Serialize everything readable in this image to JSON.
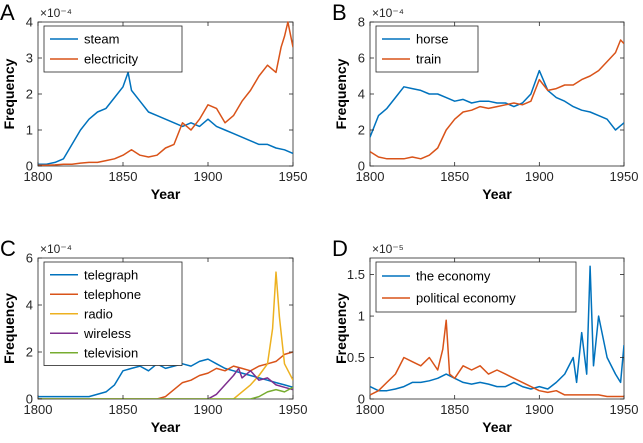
{
  "chart_data": [
    {
      "panel": "A",
      "type": "line",
      "xlabel": "Year",
      "ylabel": "Frequency",
      "multiplier": "×10⁻⁴",
      "xlim": [
        1800,
        1950
      ],
      "ylim": [
        0,
        4
      ],
      "xticks": [
        1800,
        1850,
        1900,
        1950
      ],
      "yticks": [
        0,
        1,
        2,
        3,
        4
      ],
      "legend_position": "top-left",
      "series": [
        {
          "name": "steam",
          "color": "#0072bd",
          "x": [
            1800,
            1805,
            1810,
            1815,
            1820,
            1825,
            1830,
            1835,
            1840,
            1845,
            1850,
            1853,
            1855,
            1860,
            1865,
            1870,
            1875,
            1880,
            1885,
            1890,
            1895,
            1900,
            1905,
            1910,
            1915,
            1920,
            1925,
            1930,
            1935,
            1940,
            1945,
            1950
          ],
          "y": [
            0.05,
            0.05,
            0.1,
            0.2,
            0.6,
            1.0,
            1.3,
            1.5,
            1.6,
            1.9,
            2.2,
            2.6,
            2.1,
            1.8,
            1.5,
            1.4,
            1.3,
            1.2,
            1.1,
            1.2,
            1.1,
            1.3,
            1.1,
            1.0,
            0.9,
            0.8,
            0.7,
            0.6,
            0.6,
            0.5,
            0.45,
            0.35
          ]
        },
        {
          "name": "electricity",
          "color": "#d95319",
          "x": [
            1800,
            1805,
            1810,
            1815,
            1820,
            1825,
            1830,
            1835,
            1840,
            1845,
            1850,
            1855,
            1860,
            1865,
            1870,
            1875,
            1880,
            1885,
            1890,
            1895,
            1900,
            1905,
            1910,
            1915,
            1920,
            1925,
            1930,
            1935,
            1940,
            1943,
            1945,
            1947,
            1950
          ],
          "y": [
            0.02,
            0.02,
            0.03,
            0.05,
            0.05,
            0.08,
            0.1,
            0.1,
            0.15,
            0.2,
            0.3,
            0.45,
            0.3,
            0.25,
            0.3,
            0.5,
            0.6,
            1.2,
            1.0,
            1.3,
            1.7,
            1.6,
            1.2,
            1.4,
            1.8,
            2.1,
            2.5,
            2.8,
            2.6,
            3.3,
            3.6,
            4.0,
            3.3
          ]
        }
      ]
    },
    {
      "panel": "B",
      "type": "line",
      "xlabel": "Year",
      "ylabel": "Frequency",
      "multiplier": "×10⁻⁴",
      "xlim": [
        1800,
        1950
      ],
      "ylim": [
        0,
        8
      ],
      "xticks": [
        1800,
        1850,
        1900,
        1950
      ],
      "yticks": [
        0,
        2,
        4,
        6,
        8
      ],
      "legend_position": "top-left",
      "series": [
        {
          "name": "horse",
          "color": "#0072bd",
          "x": [
            1800,
            1805,
            1810,
            1815,
            1820,
            1825,
            1830,
            1835,
            1840,
            1845,
            1850,
            1855,
            1860,
            1865,
            1870,
            1875,
            1880,
            1885,
            1890,
            1895,
            1900,
            1905,
            1910,
            1915,
            1920,
            1925,
            1930,
            1935,
            1940,
            1945,
            1950
          ],
          "y": [
            1.6,
            2.8,
            3.2,
            3.8,
            4.4,
            4.3,
            4.2,
            4.0,
            4.0,
            3.8,
            3.6,
            3.7,
            3.5,
            3.6,
            3.6,
            3.5,
            3.5,
            3.3,
            3.5,
            4.0,
            5.3,
            4.2,
            3.8,
            3.6,
            3.3,
            3.1,
            3.0,
            2.8,
            2.6,
            2.0,
            2.4
          ]
        },
        {
          "name": "train",
          "color": "#d95319",
          "x": [
            1800,
            1805,
            1810,
            1815,
            1820,
            1825,
            1830,
            1835,
            1840,
            1845,
            1850,
            1855,
            1860,
            1865,
            1870,
            1875,
            1880,
            1885,
            1890,
            1895,
            1900,
            1905,
            1910,
            1915,
            1920,
            1925,
            1930,
            1935,
            1940,
            1945,
            1948,
            1950
          ],
          "y": [
            0.8,
            0.5,
            0.4,
            0.4,
            0.4,
            0.5,
            0.4,
            0.6,
            1.0,
            2.0,
            2.6,
            3.0,
            3.1,
            3.3,
            3.2,
            3.3,
            3.4,
            3.5,
            3.4,
            3.6,
            4.8,
            4.2,
            4.3,
            4.5,
            4.5,
            4.8,
            5.0,
            5.3,
            5.8,
            6.3,
            7.0,
            6.8
          ]
        }
      ]
    },
    {
      "panel": "C",
      "type": "line",
      "xlabel": "Year",
      "ylabel": "Frequency",
      "multiplier": "×10⁻⁴",
      "xlim": [
        1800,
        1950
      ],
      "ylim": [
        0,
        6
      ],
      "xticks": [
        1800,
        1850,
        1900,
        1950
      ],
      "yticks": [
        0,
        2,
        4,
        6
      ],
      "legend_position": "top-left",
      "series": [
        {
          "name": "telegraph",
          "color": "#0072bd",
          "x": [
            1800,
            1810,
            1820,
            1830,
            1840,
            1845,
            1850,
            1855,
            1860,
            1865,
            1870,
            1875,
            1880,
            1885,
            1890,
            1895,
            1900,
            1905,
            1910,
            1915,
            1920,
            1925,
            1930,
            1935,
            1940,
            1945,
            1950
          ],
          "y": [
            0.1,
            0.1,
            0.1,
            0.1,
            0.3,
            0.6,
            1.2,
            1.3,
            1.4,
            1.2,
            1.5,
            1.3,
            1.4,
            1.5,
            1.4,
            1.6,
            1.7,
            1.5,
            1.3,
            1.2,
            1.1,
            1.0,
            0.9,
            0.8,
            0.7,
            0.6,
            0.5
          ]
        },
        {
          "name": "telephone",
          "color": "#d95319",
          "x": [
            1800,
            1870,
            1875,
            1880,
            1885,
            1890,
            1895,
            1900,
            1905,
            1910,
            1915,
            1920,
            1925,
            1930,
            1935,
            1940,
            1945,
            1950
          ],
          "y": [
            0,
            0,
            0.1,
            0.4,
            0.7,
            0.8,
            1.0,
            1.1,
            1.3,
            1.2,
            1.4,
            1.3,
            1.2,
            1.4,
            1.5,
            1.6,
            1.9,
            2.0
          ]
        },
        {
          "name": "radio",
          "color": "#edb120",
          "x": [
            1800,
            1915,
            1920,
            1925,
            1930,
            1935,
            1938,
            1940,
            1942,
            1945,
            1950
          ],
          "y": [
            0,
            0,
            0.3,
            0.6,
            1.0,
            1.5,
            3.0,
            5.4,
            3.5,
            1.5,
            0.8
          ]
        },
        {
          "name": "wireless",
          "color": "#7e2f8e",
          "x": [
            1800,
            1900,
            1905,
            1910,
            1915,
            1918,
            1920,
            1925,
            1930,
            1935,
            1940,
            1945,
            1950
          ],
          "y": [
            0,
            0,
            0.2,
            0.6,
            1.0,
            1.3,
            0.9,
            1.2,
            0.8,
            0.9,
            0.6,
            0.5,
            0.4
          ]
        },
        {
          "name": "television",
          "color": "#77ac30",
          "x": [
            1800,
            1925,
            1930,
            1935,
            1940,
            1945,
            1950
          ],
          "y": [
            0,
            0,
            0.1,
            0.3,
            0.4,
            0.3,
            0.5
          ]
        }
      ]
    },
    {
      "panel": "D",
      "type": "line",
      "xlabel": "Year",
      "ylabel": "Frequency",
      "multiplier": "×10⁻⁵",
      "xlim": [
        1800,
        1950
      ],
      "ylim": [
        0,
        1.7
      ],
      "xticks": [
        1800,
        1850,
        1900,
        1950
      ],
      "yticks": [
        0,
        0.5,
        1,
        1.5
      ],
      "ytick_labels": [
        "0",
        "0.5",
        "1",
        "1.5"
      ],
      "legend_position": "top-left",
      "series": [
        {
          "name": "the economy",
          "color": "#0072bd",
          "x": [
            1800,
            1805,
            1810,
            1815,
            1820,
            1825,
            1830,
            1835,
            1840,
            1845,
            1850,
            1855,
            1860,
            1865,
            1870,
            1875,
            1880,
            1885,
            1890,
            1895,
            1900,
            1905,
            1910,
            1915,
            1920,
            1922,
            1925,
            1928,
            1930,
            1932,
            1935,
            1940,
            1945,
            1948,
            1950
          ],
          "y": [
            0.15,
            0.1,
            0.1,
            0.12,
            0.15,
            0.2,
            0.2,
            0.22,
            0.25,
            0.3,
            0.25,
            0.2,
            0.18,
            0.2,
            0.18,
            0.15,
            0.15,
            0.2,
            0.15,
            0.12,
            0.15,
            0.12,
            0.2,
            0.3,
            0.5,
            0.2,
            0.8,
            0.3,
            1.6,
            0.4,
            1.0,
            0.5,
            0.3,
            0.2,
            0.65
          ]
        },
        {
          "name": "political economy",
          "color": "#d95319",
          "x": [
            1800,
            1805,
            1810,
            1815,
            1820,
            1825,
            1830,
            1835,
            1840,
            1843,
            1845,
            1847,
            1850,
            1855,
            1860,
            1865,
            1870,
            1875,
            1880,
            1885,
            1890,
            1895,
            1900,
            1905,
            1910,
            1915,
            1920,
            1925,
            1930,
            1935,
            1940,
            1945,
            1950
          ],
          "y": [
            0.05,
            0.1,
            0.2,
            0.3,
            0.5,
            0.45,
            0.4,
            0.5,
            0.35,
            0.6,
            0.95,
            0.3,
            0.25,
            0.4,
            0.35,
            0.4,
            0.3,
            0.35,
            0.3,
            0.25,
            0.2,
            0.15,
            0.1,
            0.08,
            0.1,
            0.05,
            0.05,
            0.05,
            0.05,
            0.05,
            0.03,
            0.03,
            0.03
          ]
        }
      ]
    }
  ]
}
